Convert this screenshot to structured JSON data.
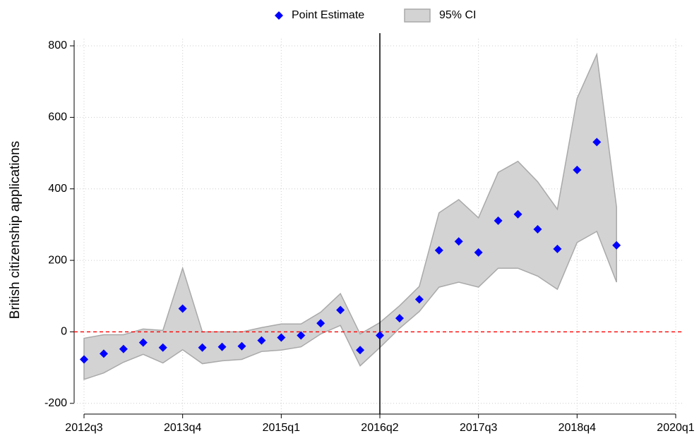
{
  "chart_data": {
    "type": "line",
    "y_label": "British citizenship applications",
    "categories": [
      "2012q3",
      null,
      null,
      null,
      null,
      "2013q4",
      null,
      null,
      null,
      null,
      "2015q1",
      null,
      null,
      null,
      null,
      "2016q2",
      null,
      null,
      null,
      null,
      "2017q3",
      null,
      null,
      null,
      null,
      "2018q4",
      null,
      null,
      null,
      null,
      "2020q1"
    ],
    "series": [
      {
        "name": "Point Estimate",
        "color": "#0000ff",
        "marker": "diamond",
        "values": [
          -77,
          -61,
          -48,
          -30,
          -44,
          65,
          -44,
          -42,
          -40,
          -24,
          -16,
          -10,
          24,
          61,
          -51,
          -10,
          38,
          91,
          228,
          253,
          222,
          311,
          329,
          287,
          232,
          453,
          531,
          242,
          null,
          null,
          null
        ]
      },
      {
        "name": "95% CI",
        "color": "#d3d3d3",
        "edge_color": "#a9a9a9",
        "upper": [
          -18,
          -8,
          -8,
          8,
          4,
          178,
          0,
          0,
          0,
          12,
          22,
          22,
          55,
          107,
          -6,
          26,
          73,
          127,
          333,
          370,
          319,
          446,
          477,
          420,
          343,
          653,
          776,
          349,
          null,
          null,
          null
        ],
        "lower": [
          -133,
          -115,
          -85,
          -63,
          -87,
          -50,
          -89,
          -81,
          -77,
          -55,
          -51,
          -42,
          -6,
          18,
          -95,
          -44,
          10,
          57,
          125,
          139,
          125,
          178,
          178,
          156,
          119,
          250,
          281,
          139,
          null,
          null,
          null
        ]
      }
    ],
    "ylim": [
      -230,
      800
    ],
    "yticks": [
      -200,
      0,
      200,
      400,
      600,
      800
    ],
    "grid": true,
    "legend": "top",
    "ref_x": "2016q2",
    "ref_y": 0,
    "ref_y_color": "#ff0000"
  }
}
